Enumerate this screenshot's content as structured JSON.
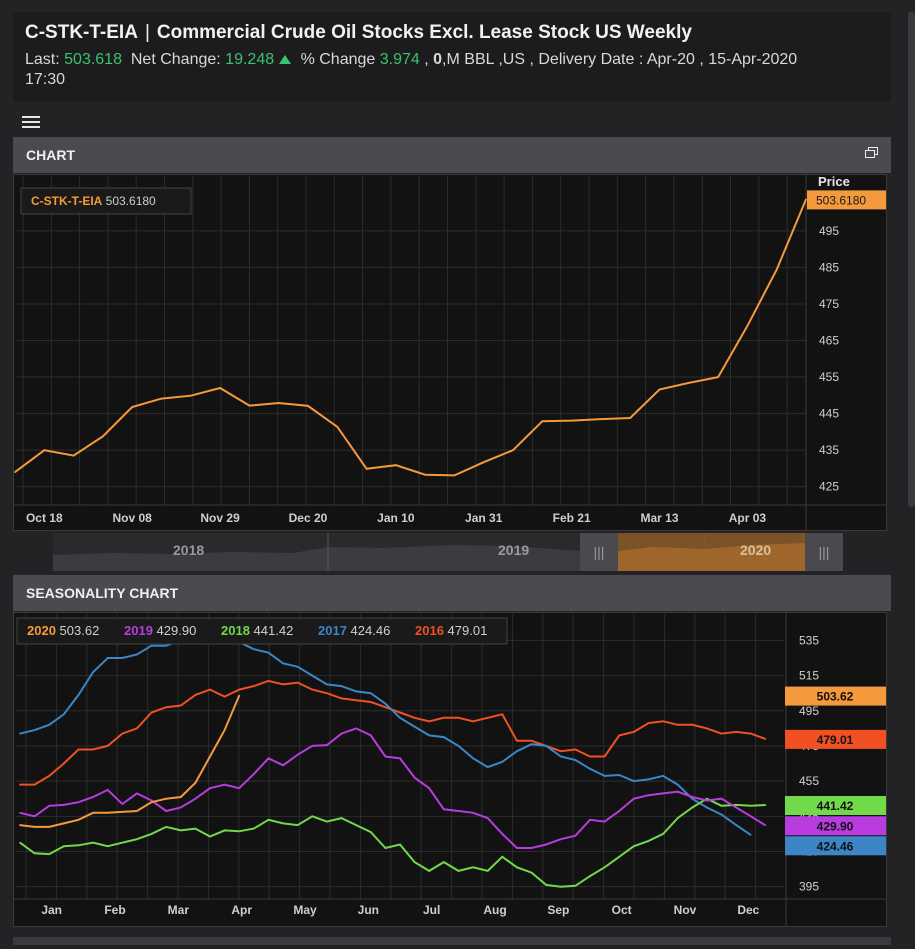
{
  "header": {
    "symbol": "C-STK-T-EIA",
    "separator": "|",
    "name": "Commercial Crude Oil Stocks Excl. Lease Stock US Weekly",
    "last_label": "Last:",
    "last_value": "503.618",
    "net_change_label": "Net Change:",
    "net_change_value": "19.248",
    "pct_change_label": "% Change",
    "pct_change_value": "3.974",
    "tail_comma": ",",
    "tail_zero": "0",
    "tail_rest": ",M BBL ,US  , Delivery Date : Apr-20 , 15-Apr-2020",
    "time": "17:30"
  },
  "colors": {
    "accent": "#f59a3c",
    "green": "#3ac46a",
    "panel": "#4a4a50"
  },
  "chart_panel": {
    "title": "CHART",
    "restore_icon": "restore-window-icon"
  },
  "seasonality_panel": {
    "title": "SEASONALITY CHART"
  },
  "navigator": {
    "labels": [
      "2018",
      "2019",
      "2020"
    ],
    "handle_glyph": "|||"
  },
  "chart_data": [
    {
      "type": "line",
      "title": "C-STK-T-EIA",
      "legend_value": "503.6180",
      "ylabel": "Price",
      "yunit": "M BBL",
      "last_label": "503.6180",
      "ylim": [
        420,
        510
      ],
      "y_ticks": [
        425,
        435,
        445,
        455,
        465,
        475,
        485,
        495
      ],
      "x_ticks": [
        "Oct 18",
        "Nov 08",
        "Nov 29",
        "Dec 20",
        "Jan 10",
        "Jan 31",
        "Feb 21",
        "Mar 13",
        "Apr 03"
      ],
      "x_tick_index": [
        1,
        4,
        7,
        10,
        13,
        16,
        19,
        22,
        25
      ],
      "color": "#f59a3c",
      "values": [
        429.0,
        435.0,
        433.5,
        438.8,
        446.8,
        449.1,
        449.9,
        452.0,
        447.2,
        447.9,
        447.1,
        441.4,
        429.9,
        430.9,
        428.3,
        428.1,
        431.7,
        435.0,
        442.9,
        443.1,
        443.5,
        443.8,
        451.6,
        453.4,
        455.0,
        469.0,
        484.4,
        503.6
      ]
    },
    {
      "type": "line",
      "title": "Seasonality",
      "ylim": [
        388,
        550
      ],
      "y_ticks": [
        395,
        415,
        435,
        455,
        475,
        495,
        515,
        535
      ],
      "x_ticks": [
        "Jan",
        "Feb",
        "Mar",
        "Apr",
        "May",
        "Jun",
        "Jul",
        "Aug",
        "Sep",
        "Oct",
        "Nov",
        "Dec"
      ],
      "weeks": 53,
      "series": [
        {
          "name": "2020",
          "last": "503.62",
          "color": "#f59a3c",
          "values": [
            430.0,
            429.0,
            429.0,
            431.0,
            433.0,
            437.0,
            437.0,
            437.5,
            438.0,
            443.0,
            445.0,
            446.0,
            454.0,
            469.0,
            484.0,
            503.62
          ]
        },
        {
          "name": "2019",
          "last": "429.90",
          "color": "#b83ce0",
          "values": [
            437.0,
            435.0,
            441.0,
            441.5,
            443.0,
            446.0,
            450.0,
            442.0,
            448.0,
            444.0,
            438.0,
            440.0,
            445.0,
            451.0,
            453.0,
            451.0,
            459.0,
            468.0,
            464.0,
            470.0,
            475.0,
            475.5,
            482.0,
            485.0,
            481.0,
            469.0,
            468.0,
            457.0,
            451.0,
            439.0,
            438.0,
            437.0,
            434.0,
            425.0,
            417.0,
            417.0,
            419.0,
            422.0,
            424.0,
            433.0,
            432.0,
            438.0,
            445.0,
            447.0,
            448.0,
            449.0,
            446.0,
            444.0,
            445.0,
            440.0,
            435.0,
            429.9
          ]
        },
        {
          "name": "2018",
          "last": "441.42",
          "color": "#72d94a",
          "values": [
            420.0,
            414.0,
            413.5,
            418.0,
            418.5,
            420.0,
            418.0,
            420.0,
            422.0,
            425.0,
            429.0,
            427.0,
            428.0,
            423.5,
            427.0,
            426.5,
            428.0,
            433.0,
            431.0,
            430.0,
            435.0,
            432.0,
            434.0,
            430.0,
            426.0,
            417.0,
            419.0,
            409.0,
            404.0,
            409.0,
            404.0,
            406.0,
            404.0,
            412.0,
            406.0,
            403.0,
            396.0,
            395.0,
            395.5,
            401.0,
            406.0,
            412.0,
            418.0,
            421.0,
            425.0,
            434.0,
            440.0,
            445.0,
            441.0,
            441.5,
            441.0,
            441.42
          ]
        },
        {
          "name": "2017",
          "last": "424.46",
          "color": "#3c86c8",
          "values": [
            482.0,
            484.0,
            487.0,
            493.0,
            504.0,
            517.0,
            525.0,
            525.0,
            527.0,
            532.0,
            532.0,
            535.0,
            536.0,
            537.0,
            535.0,
            534.0,
            530.0,
            528.0,
            522.0,
            520.0,
            515.0,
            510.0,
            509.0,
            506.0,
            505.0,
            499.0,
            491.0,
            486.0,
            481.0,
            480.0,
            475.0,
            468.0,
            463.0,
            466.0,
            472.0,
            476.0,
            475.0,
            469.0,
            467.0,
            462.0,
            458.0,
            458.5,
            455.0,
            456.0,
            458.0,
            453.0,
            445.0,
            440.0,
            436.0,
            430.0,
            424.46
          ]
        },
        {
          "name": "2016",
          "last": "479.01",
          "color": "#f05022",
          "values": [
            453.0,
            453.0,
            458.0,
            465.0,
            473.0,
            473.0,
            475.0,
            482.0,
            485.0,
            494.0,
            497.0,
            498.0,
            504.0,
            507.0,
            503.0,
            507.0,
            509.0,
            512.0,
            510.0,
            511.0,
            507.0,
            505.0,
            502.0,
            501.0,
            500.0,
            497.0,
            494.0,
            491.0,
            489.0,
            491.0,
            491.0,
            489.0,
            491.0,
            493.0,
            478.0,
            478.0,
            475.0,
            472.0,
            473.0,
            469.0,
            469.0,
            481.0,
            483.0,
            488.0,
            489.0,
            487.0,
            487.0,
            485.0,
            482.0,
            483.0,
            482.0,
            479.01
          ]
        }
      ]
    }
  ]
}
